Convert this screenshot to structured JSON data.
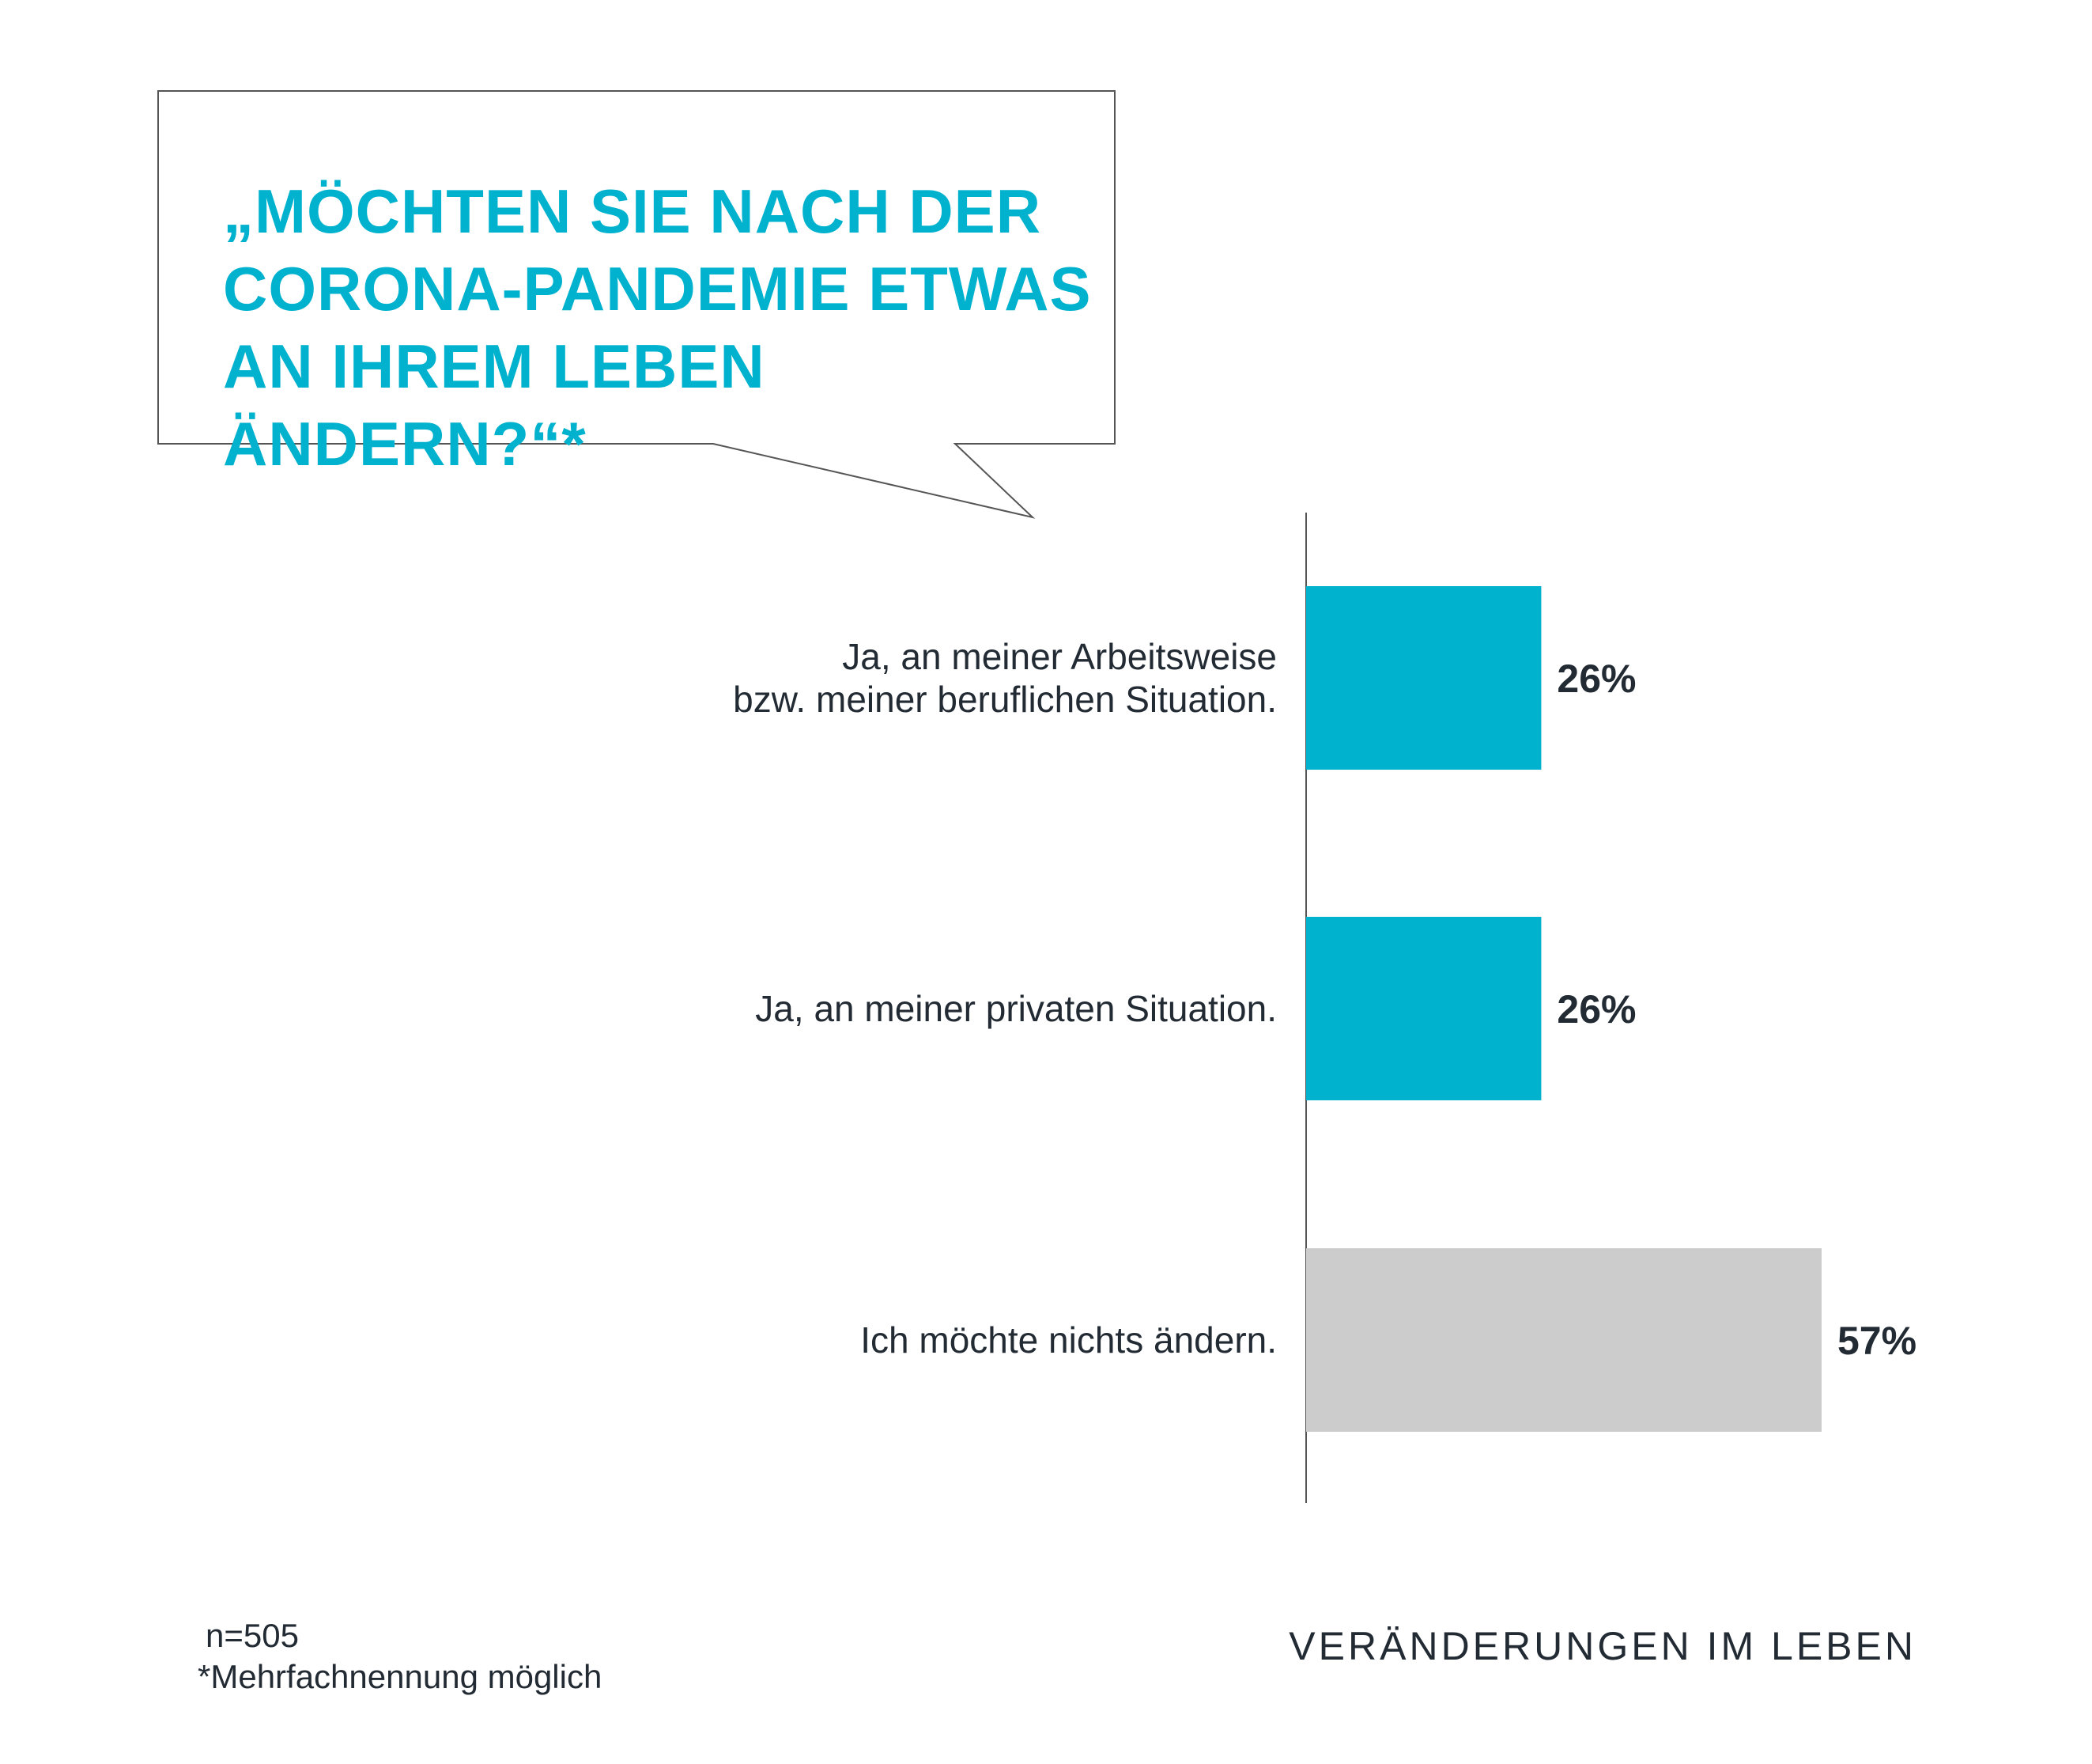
{
  "headline": {
    "lines": [
      "„MÖCHTEN SIE NACH DER",
      "CORONA-PANDEMIE ETWAS",
      "AN IHREM LEBEN ÄNDERN?“*"
    ]
  },
  "chart_data": {
    "type": "bar",
    "orientation": "horizontal",
    "categories": [
      [
        "Ja, an meiner Arbeitsweise",
        "bzw. meiner beruflichen Situation."
      ],
      [
        "Ja, an meiner privaten Situation."
      ],
      [
        "Ich möchte nichts ändern."
      ]
    ],
    "values": [
      26,
      26,
      57
    ],
    "value_labels": [
      "26%",
      "26%",
      "57%"
    ],
    "bar_colors": [
      "#00b2cd",
      "#00b2cd",
      "#cccccc"
    ],
    "unit": "%",
    "grid": false
  },
  "footnote": {
    "sample": "n=505",
    "note": "*Mehrfachnennung möglich"
  },
  "footer": {
    "section_title": "VERÄNDERUNGEN IM LEBEN"
  },
  "colors": {
    "accent": "#00b2cd",
    "neutral_bar": "#cccccc",
    "text": "#222a33"
  }
}
